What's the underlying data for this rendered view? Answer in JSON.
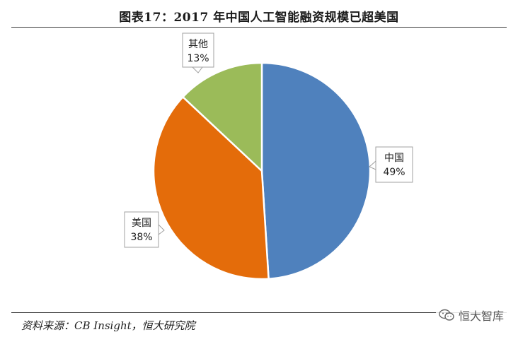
{
  "title": "图表17：2017 年中国人工智能融资规模已超美国",
  "source": "资料来源：CB Insight，恒大研究院",
  "watermark": {
    "text": "恒大智库",
    "icon": "wechat-icon"
  },
  "chart_data": {
    "type": "pie",
    "title": "图表17：2017 年中国人工智能融资规模已超美国",
    "slices": [
      {
        "label": "中国",
        "value": 49,
        "value_text": "49%",
        "color": "#4f81bd"
      },
      {
        "label": "美国",
        "value": 38,
        "value_text": "38%",
        "color": "#e46c0a"
      },
      {
        "label": "其他",
        "value": 13,
        "value_text": "13%",
        "color": "#9bbb59"
      }
    ],
    "start": "12 o'clock",
    "direction": "clockwise"
  }
}
